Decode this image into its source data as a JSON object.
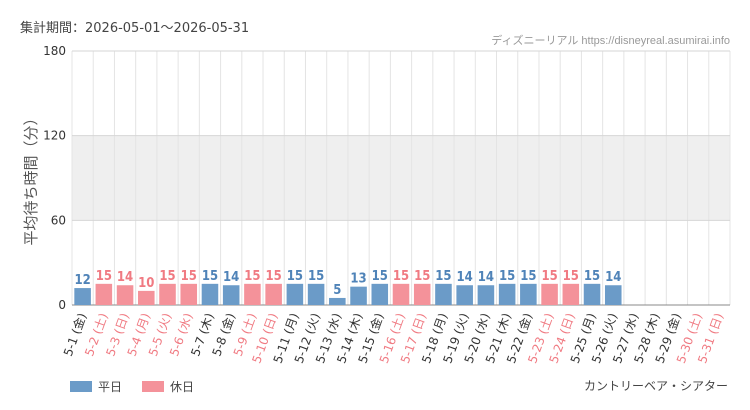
{
  "header": {
    "period_label": "集計期間：2026-05-01～2026-05-31",
    "source_text": "ディズニーリアル https://disneyreal.asumirai.info"
  },
  "footer": {
    "facility_name": "カントリーベア・シアター"
  },
  "colors": {
    "weekday": "#6b9bc8",
    "holiday": "#f4929a",
    "weekday_text": "#4f83b8",
    "holiday_text": "#f07a82",
    "band": "#efefef",
    "grid": "#e4e4e4"
  },
  "chart_data": {
    "type": "bar",
    "title": "",
    "ylabel": "平均待ち時間（分）",
    "xlabel": "",
    "ylim": [
      0,
      180
    ],
    "yticks": [
      0,
      60,
      120,
      180
    ],
    "grid": true,
    "legend": {
      "placement": "bottom-left",
      "entries": [
        {
          "key": "weekday",
          "label": "平日"
        },
        {
          "key": "holiday",
          "label": "休日"
        }
      ]
    },
    "categories": [
      "5-1 (金)",
      "5-2 (土)",
      "5-3 (日)",
      "5-4 (月)",
      "5-5 (火)",
      "5-6 (水)",
      "5-7 (木)",
      "5-8 (金)",
      "5-9 (土)",
      "5-10 (日)",
      "5-11 (月)",
      "5-12 (火)",
      "5-13 (水)",
      "5-14 (木)",
      "5-15 (金)",
      "5-16 (土)",
      "5-17 (日)",
      "5-18 (月)",
      "5-19 (火)",
      "5-20 (水)",
      "5-21 (木)",
      "5-22 (金)",
      "5-23 (土)",
      "5-24 (日)",
      "5-25 (月)",
      "5-26 (火)",
      "5-27 (水)",
      "5-28 (木)",
      "5-29 (金)",
      "5-30 (土)",
      "5-31 (日)"
    ],
    "day_types": [
      "weekday",
      "holiday",
      "holiday",
      "holiday",
      "holiday",
      "holiday",
      "weekday",
      "weekday",
      "holiday",
      "holiday",
      "weekday",
      "weekday",
      "weekday",
      "weekday",
      "weekday",
      "holiday",
      "holiday",
      "weekday",
      "weekday",
      "weekday",
      "weekday",
      "weekday",
      "holiday",
      "holiday",
      "weekday",
      "weekday",
      "weekday",
      "weekday",
      "weekday",
      "holiday",
      "holiday"
    ],
    "values": [
      12,
      15,
      14,
      10,
      15,
      15,
      15,
      14,
      15,
      15,
      15,
      15,
      5,
      13,
      15,
      15,
      15,
      15,
      14,
      14,
      15,
      15,
      15,
      15,
      15,
      14,
      null,
      null,
      null,
      null,
      null
    ]
  }
}
